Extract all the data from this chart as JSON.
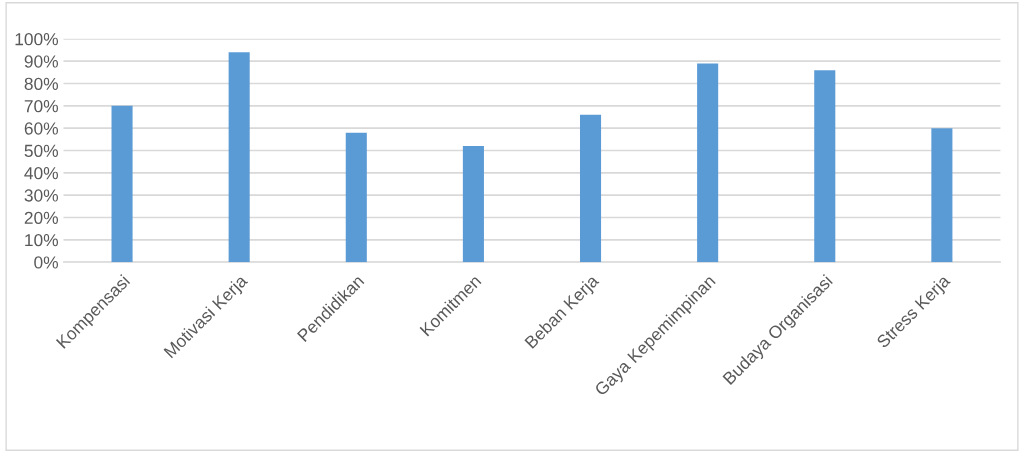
{
  "chart_data": {
    "type": "bar",
    "categories": [
      "Kompensasi",
      "Motivasi Kerja",
      "Pendidikan",
      "Komitmen",
      "Beban Kerja",
      "Gaya Kepemimpinan",
      "Budaya Organisasi",
      "Stress Kerja"
    ],
    "values": [
      70,
      94,
      58,
      52,
      66,
      89,
      86,
      60
    ],
    "color": "#5b9bd5",
    "ylim": [
      0,
      100
    ],
    "yticks": [
      {
        "value": 0,
        "label": "0%"
      },
      {
        "value": 10,
        "label": "10%"
      },
      {
        "value": 20,
        "label": "20%"
      },
      {
        "value": 30,
        "label": "30%"
      },
      {
        "value": 40,
        "label": "40%"
      },
      {
        "value": 50,
        "label": "50%"
      },
      {
        "value": 60,
        "label": "60%"
      },
      {
        "value": 70,
        "label": "70%"
      },
      {
        "value": 80,
        "label": "80%"
      },
      {
        "value": 90,
        "label": "90%"
      },
      {
        "value": 100,
        "label": "100%"
      }
    ],
    "grid": "y"
  }
}
